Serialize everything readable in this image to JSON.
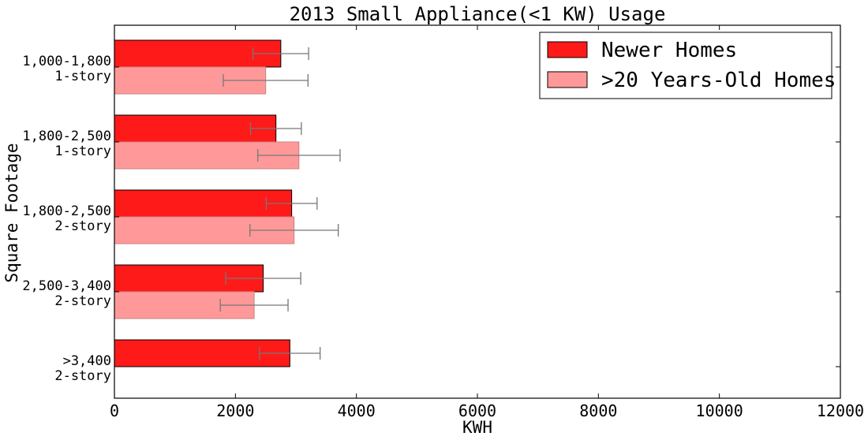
{
  "chart_data": {
    "type": "bar",
    "orientation": "horizontal",
    "title": "2013 Small Appliance(<1 KW) Usage",
    "xlabel": "KWH",
    "ylabel": "Square Footage",
    "xlim": [
      0,
      12000
    ],
    "xticks": [
      "0",
      "2000",
      "4000",
      "6000",
      "8000",
      "10000",
      "12000"
    ],
    "categories": [
      [
        "1,000-1,800",
        "1-story"
      ],
      [
        "1,800-2,500",
        "1-story"
      ],
      [
        "1,800-2,500",
        "2-story"
      ],
      [
        "2,500-3,400",
        "2-story"
      ],
      [
        ">3,400",
        "2-story"
      ]
    ],
    "series": [
      {
        "name": "Newer Homes",
        "color": "#ff1a1a",
        "values": [
          2750,
          2670,
          2930,
          2460,
          2900
        ],
        "error": [
          460,
          420,
          420,
          620,
          500
        ]
      },
      {
        "name": ">20 Years-Old Homes",
        "color": "#ff9999",
        "values": [
          2500,
          3050,
          2970,
          2310,
          null
        ],
        "error": [
          700,
          680,
          730,
          560,
          null
        ]
      }
    ],
    "legend_position": "top-right",
    "grid": false
  }
}
